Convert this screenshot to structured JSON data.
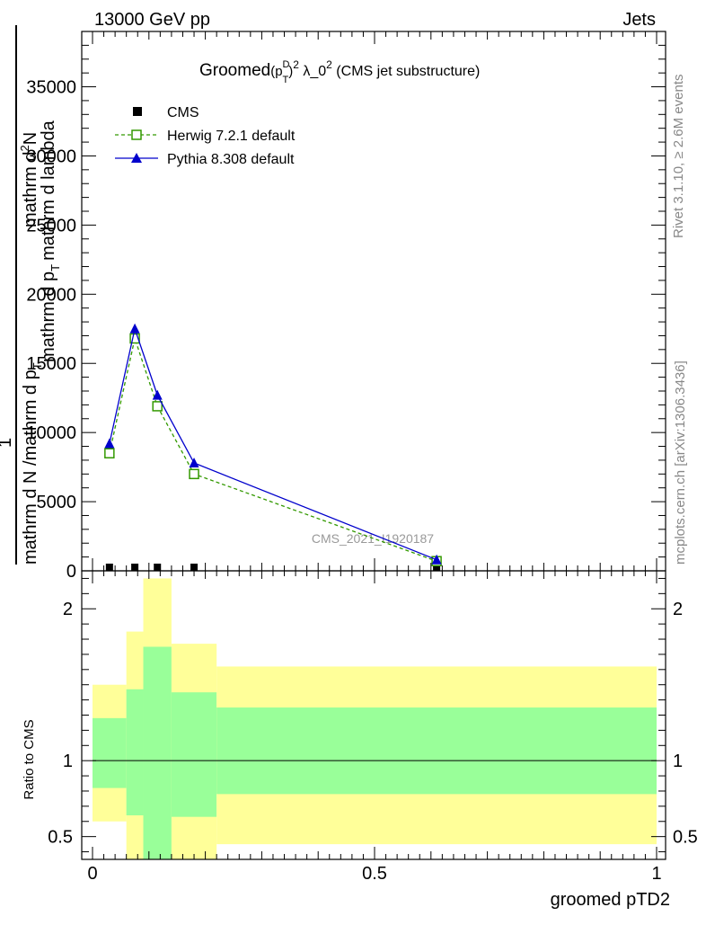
{
  "header": {
    "left": "13000 GeV pp",
    "right": "Jets"
  },
  "side_text": {
    "rivet": "Rivet 3.1.10, ≥ 2.6M events",
    "mcplots": "mcplots.cern.ch [arXiv:1306.3436]"
  },
  "watermark": "CMS_2021_I1920187",
  "chart_data": [
    {
      "type": "line",
      "title": {
        "lead": "Groomed",
        "formula": "(p",
        "sup1": "D",
        "sub1": "T",
        "close": ")",
        "sup2": "2",
        "mid": " λ_0",
        "sup3": "2",
        "tail": " (CMS jet substructure)"
      },
      "ylabel": "1 / mathrm d N / mathrm d p_T mathrm d^2N / mathrm d p_T mathrm d lambda",
      "ylabel_parts": [
        "1",
        "mathrm d N /mathrm d p",
        "T",
        "mathrm d p",
        "T",
        "mathrm d lambda",
        "mathrm d",
        "N",
        "2"
      ],
      "xlim": [
        0,
        1
      ],
      "ylim": [
        0,
        39000
      ],
      "yticks": [
        "0",
        "5000",
        "10000",
        "15000",
        "20000",
        "25000",
        "30000",
        "35000"
      ],
      "ytick_values": [
        0,
        5000,
        10000,
        15000,
        20000,
        25000,
        30000,
        35000
      ],
      "legend_position": "top-left",
      "series": [
        {
          "name": "CMS",
          "color": "#000000",
          "marker": "square-filled",
          "x": [
            0.03,
            0.075,
            0.115,
            0.18,
            0.61
          ],
          "y": [
            0,
            0,
            0,
            0,
            0
          ]
        },
        {
          "name": "Herwig 7.2.1 default",
          "color": "#339900",
          "marker": "square-open",
          "dashed": true,
          "x": [
            0.03,
            0.075,
            0.115,
            0.18,
            0.61
          ],
          "y": [
            8500,
            16800,
            11900,
            7000,
            700
          ]
        },
        {
          "name": "Pythia 8.308 default",
          "color": "#0000cc",
          "marker": "triangle-filled",
          "x": [
            0.03,
            0.075,
            0.115,
            0.18,
            0.61
          ],
          "y": [
            9200,
            17500,
            12700,
            7800,
            800
          ]
        }
      ]
    },
    {
      "type": "area",
      "ylabel": "Ratio to CMS",
      "xlabel": "groomed pTD2",
      "xlim": [
        0,
        1
      ],
      "ylim": [
        0.35,
        2.25
      ],
      "xticks": [
        "0",
        "0.5",
        "1"
      ],
      "xtick_values": [
        0,
        0.5,
        1
      ],
      "yticks": [
        "0.5",
        "1",
        "2"
      ],
      "ytick_values": [
        0.5,
        1,
        2
      ],
      "reference_line": 1,
      "bands": {
        "bins": [
          [
            0.0,
            0.06
          ],
          [
            0.06,
            0.09
          ],
          [
            0.09,
            0.14
          ],
          [
            0.14,
            0.22
          ],
          [
            0.22,
            1.0
          ]
        ],
        "yellow": [
          [
            0.6,
            1.5
          ],
          [
            0.35,
            1.85
          ],
          [
            0.35,
            2.2
          ],
          [
            0.35,
            1.77
          ],
          [
            0.45,
            1.62
          ]
        ],
        "green": [
          [
            0.82,
            1.28
          ],
          [
            0.64,
            1.47
          ],
          [
            0.35,
            1.75
          ],
          [
            0.63,
            1.45
          ],
          [
            0.78,
            1.35
          ]
        ],
        "yellow_color": "#ffff99",
        "green_color": "#99ff99"
      }
    }
  ]
}
